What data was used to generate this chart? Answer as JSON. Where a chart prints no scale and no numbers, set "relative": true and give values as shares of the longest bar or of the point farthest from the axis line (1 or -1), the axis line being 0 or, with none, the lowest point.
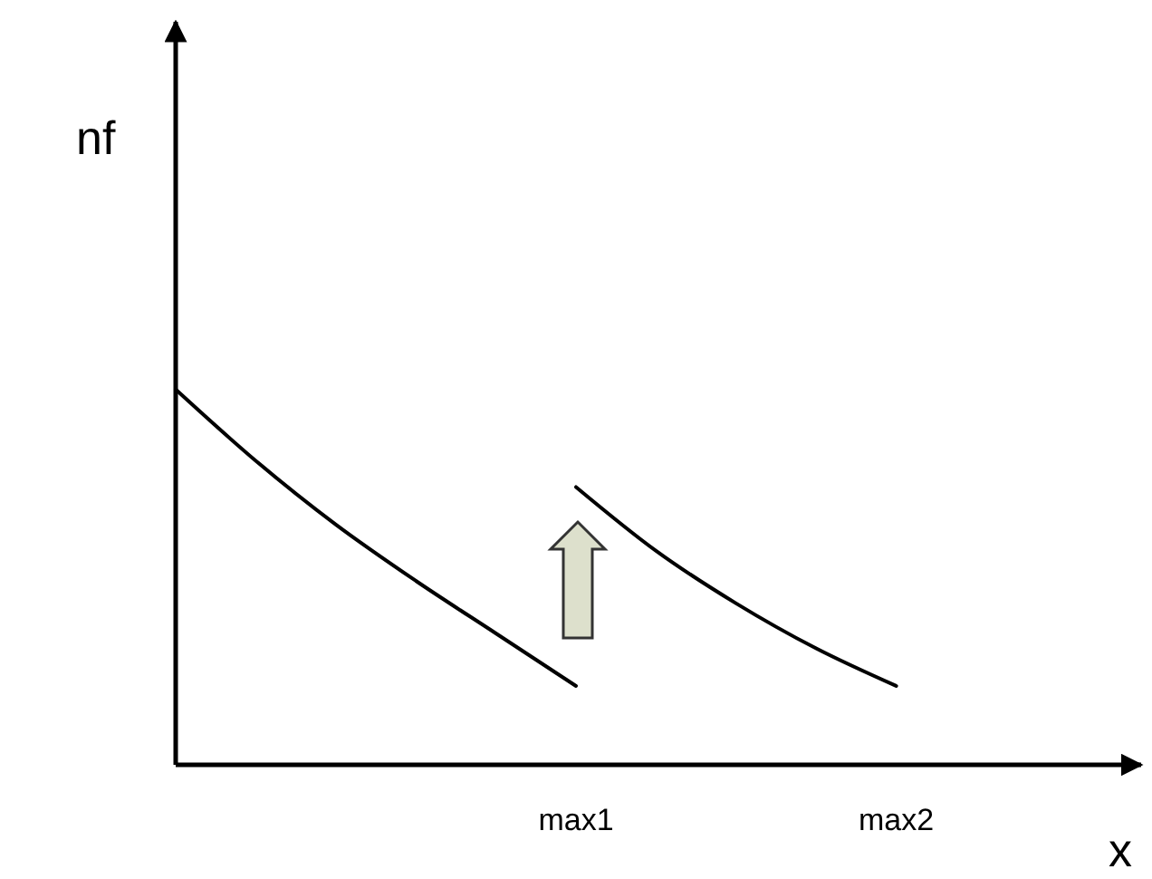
{
  "chart_data": {
    "type": "line",
    "xlabel": "x",
    "ylabel": "nf",
    "relative": true,
    "categories": [
      null,
      null,
      null,
      null,
      null,
      "max1",
      null,
      null,
      null,
      "max2",
      null,
      null
    ],
    "series": [
      {
        "color": "#000000",
        "values": [
          1,
          0.81,
          0.64,
          0.49,
          0.35,
          0.21,
          null,
          null,
          null,
          null,
          null,
          null
        ]
      },
      {
        "color": "#000000",
        "values": [
          null,
          null,
          null,
          null,
          null,
          0.74,
          0.57,
          0.43,
          0.31,
          0.21,
          null,
          null
        ]
      }
    ]
  }
}
